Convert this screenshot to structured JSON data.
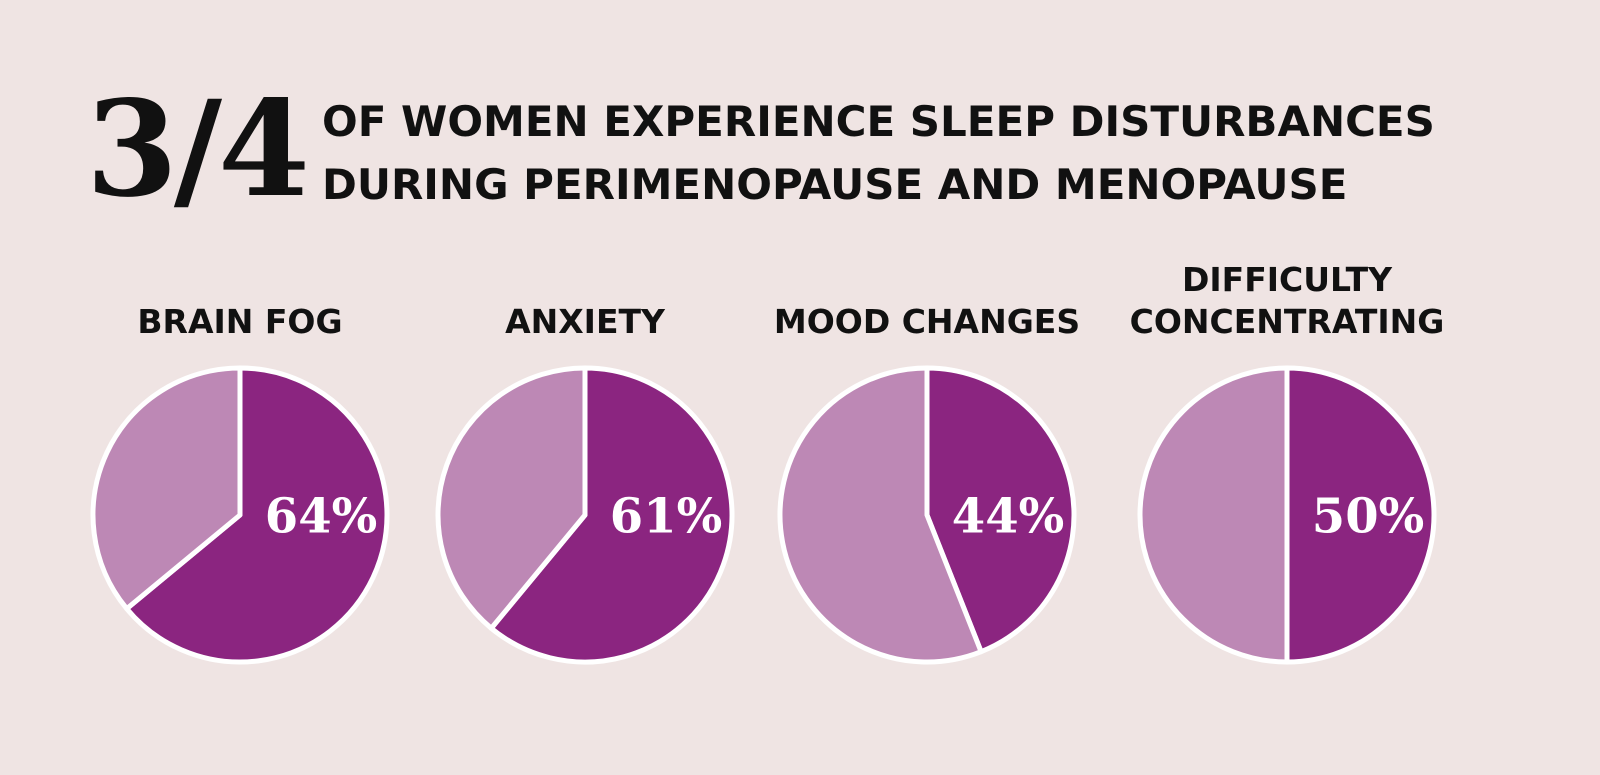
{
  "header": {
    "fraction": "3/4",
    "lines": [
      "OF WOMEN EXPERIENCE SLEEP DISTURBANCES",
      "DURING PERIMENOPAUSE AND MENOPAUSE"
    ]
  },
  "chart_data": [
    {
      "type": "pie",
      "title": "BRAIN FOG",
      "values": [
        64,
        36
      ],
      "value_labels": [
        "64%",
        null
      ],
      "colors": [
        "#8b2580",
        "#bd88b5"
      ]
    },
    {
      "type": "pie",
      "title": "ANXIETY",
      "values": [
        61,
        39
      ],
      "value_labels": [
        "61%",
        null
      ],
      "colors": [
        "#8b2580",
        "#bd88b5"
      ]
    },
    {
      "type": "pie",
      "title": "MOOD CHANGES",
      "values": [
        44,
        56
      ],
      "value_labels": [
        "44%",
        null
      ],
      "colors": [
        "#8b2580",
        "#bd88b5"
      ]
    },
    {
      "type": "pie",
      "title": "DIFFICULTY CONCENTRATING",
      "values": [
        50,
        50
      ],
      "value_labels": [
        "50%",
        null
      ],
      "colors": [
        "#8b2580",
        "#bd88b5"
      ]
    }
  ]
}
